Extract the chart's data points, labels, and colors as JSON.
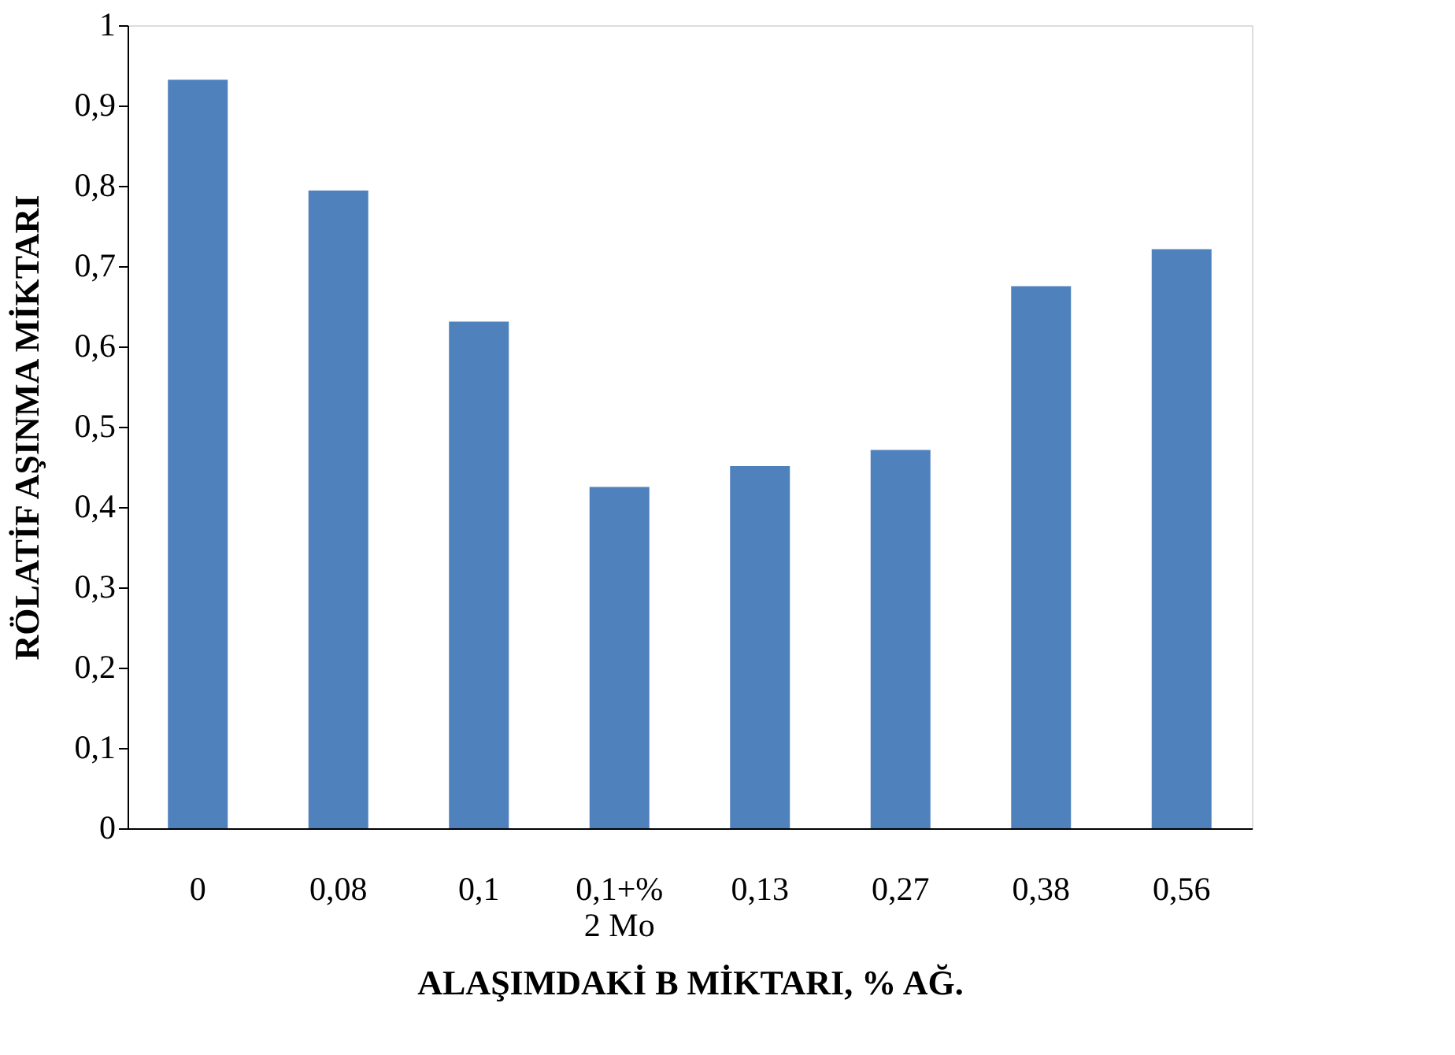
{
  "chart_data": {
    "type": "bar",
    "xlabel": "ALAŞIMDAKİ B MİKTARI, % AĞ.",
    "ylabel": "RÖLATİF AŞINMA MİKTARI",
    "categories": [
      "0",
      "0,08",
      "0,1",
      "0,1+% 2 Mo",
      "0,13",
      "0,27",
      "0,38",
      "0,56"
    ],
    "values": [
      0.932,
      0.794,
      0.631,
      0.425,
      0.451,
      0.471,
      0.675,
      0.721
    ],
    "color": "#4f81bd",
    "ylim": [
      0,
      1
    ],
    "yticks": [
      0,
      {
        "value": 0.1,
        "label": "0,1"
      },
      {
        "value": 0.2,
        "label": "0,2"
      },
      {
        "value": 0.3,
        "label": "0,3"
      },
      {
        "value": 0.4,
        "label": "0,4"
      },
      {
        "value": 0.5,
        "label": "0,5"
      },
      {
        "value": 0.6,
        "label": "0,6"
      },
      {
        "value": 0.7,
        "label": "0,7"
      },
      {
        "value": 0.8,
        "label": "0,8"
      },
      {
        "value": 0.9,
        "label": "0,9"
      },
      1
    ],
    "grid": false
  }
}
